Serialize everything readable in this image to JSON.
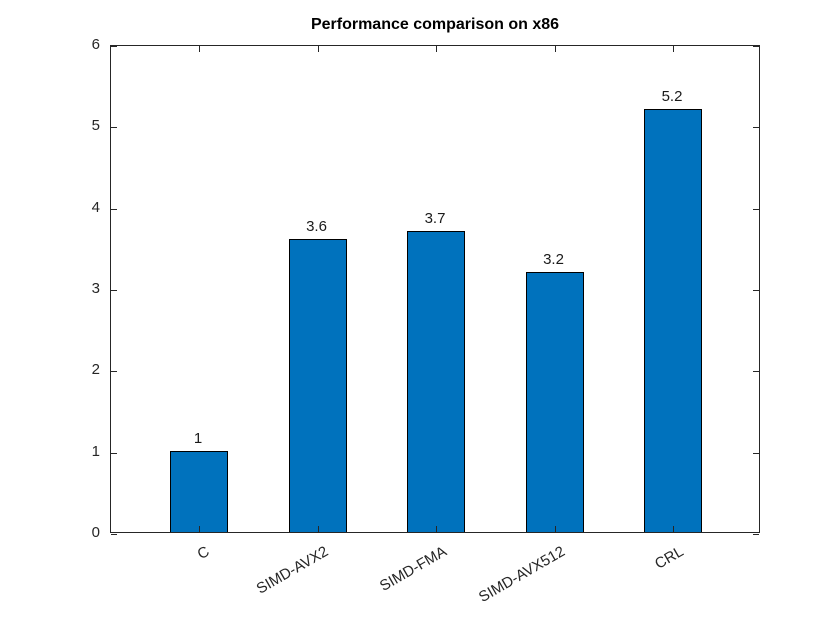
{
  "chart_data": {
    "type": "bar",
    "title": "Performance comparison on x86",
    "categories": [
      "C",
      "SIMD-AVX2",
      "SIMD-FMA",
      "SIMD-AVX512",
      "CRL"
    ],
    "values": [
      1,
      3.6,
      3.7,
      3.2,
      5.2
    ],
    "value_labels": [
      "1",
      "3.6",
      "3.7",
      "3.2",
      "5.2"
    ],
    "xlabel": "",
    "ylabel": "",
    "ylim": [
      0,
      6
    ],
    "yticks": [
      0,
      1,
      2,
      3,
      4,
      5,
      6
    ],
    "ytick_labels": [
      "0",
      "1",
      "2",
      "3",
      "4",
      "5",
      "6"
    ],
    "x_label_rotation_deg": -30,
    "grid": false,
    "legend_position": "none",
    "bar_color": "#0072BD",
    "bar_edge_color": "#000000",
    "axis_color": "#262626",
    "background_color": "#ffffff"
  }
}
